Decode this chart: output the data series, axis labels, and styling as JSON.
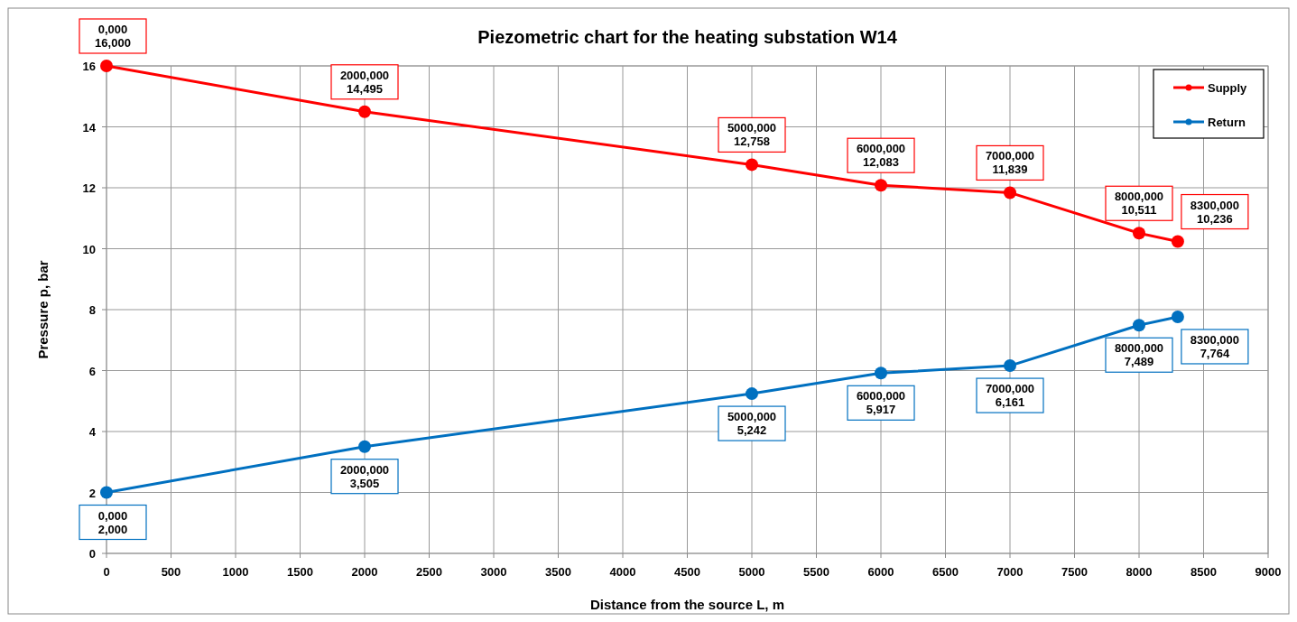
{
  "chart_data": {
    "type": "line",
    "title": "Piezometric chart for the heating substation W14",
    "xlabel": "Distance from the source L, m",
    "ylabel": "Pressure p, bar",
    "x": [
      0,
      2000,
      5000,
      6000,
      7000,
      8000,
      8300
    ],
    "series": [
      {
        "name": "Supply",
        "color": "#ff0000",
        "values": [
          16,
          14.495,
          12.758,
          12.083,
          11.839,
          10.511,
          10.236
        ],
        "value_labels": [
          "0,000\n16,000",
          "2000,000\n14,495",
          "5000,000\n12,758",
          "6000,000\n12,083",
          "7000,000\n11,839",
          "8000,000\n10,511",
          "8300,000\n10,236"
        ]
      },
      {
        "name": "Return",
        "color": "#0070c0",
        "values": [
          2,
          3.505,
          5.242,
          5.917,
          6.161,
          7.489,
          7.764
        ],
        "value_labels": [
          "0,000\n2,000",
          "2000,000\n3,505",
          "5000,000\n5,242",
          "6000,000\n5,917",
          "7000,000\n6,161",
          "8000,000\n7,489",
          "8300,000\n7,764"
        ]
      }
    ],
    "xlim": [
      0,
      9000
    ],
    "xticks": [
      0,
      500,
      1000,
      1500,
      2000,
      2500,
      3000,
      3500,
      4000,
      4500,
      5000,
      5500,
      6000,
      6500,
      7000,
      7500,
      8000,
      8500,
      9000
    ],
    "ylim": [
      0,
      16
    ],
    "yticks": [
      0,
      2,
      4,
      6,
      8,
      10,
      12,
      14,
      16
    ],
    "grid": true,
    "legend": "top right",
    "marker": "circle",
    "line_style": "solid"
  }
}
